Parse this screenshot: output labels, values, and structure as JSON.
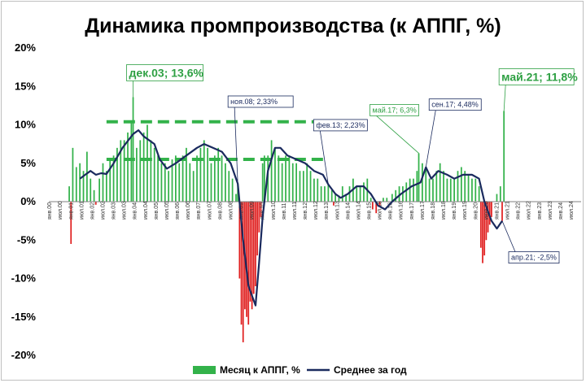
{
  "chart_data": {
    "type": "bar",
    "title": "Динамика промпроизводства (к АППГ, %)",
    "y_range": [
      -20,
      20
    ],
    "y_ticks": [
      "20%",
      "15%",
      "10%",
      "5%",
      "0%",
      "-5%",
      "-10%",
      "-15%",
      "-20%"
    ],
    "x_range": [
      "2000-01",
      "2024-12"
    ],
    "x_ticks": [
      "янв.00",
      "июл.00",
      "янв.01",
      "июл.01",
      "янв.02",
      "июл.02",
      "янв.03",
      "июл.03",
      "янв.04",
      "июл.04",
      "янв.05",
      "июл.05",
      "янв.06",
      "июл.06",
      "янв.07",
      "июл.07",
      "янв.08",
      "июл.08",
      "янв.09",
      "июл.09",
      "янв.10",
      "июл.10",
      "янв.11",
      "июл.11",
      "янв.12",
      "июл.12",
      "янв.13",
      "июл.13",
      "янв.14",
      "июл.14",
      "янв.15",
      "июл.15",
      "янв.16",
      "июл.16",
      "янв.17",
      "июл.17",
      "янв.18",
      "июл.18",
      "янв.19",
      "июл.19",
      "янв.20",
      "июл.20",
      "янв.21",
      "июл.21",
      "янв.22",
      "июл.22",
      "янв.23",
      "июл.23",
      "янв.24",
      "июл.24"
    ],
    "series": [
      {
        "name": "Месяц к АППГ, %",
        "type": "bar",
        "positive_color": "#33b24a",
        "negative_color": "#e02020",
        "points": [
          [
            "2000-12",
            2
          ],
          [
            "2001-01",
            -5.5
          ],
          [
            "2001-02",
            7
          ],
          [
            "2001-04",
            4.5
          ],
          [
            "2001-06",
            5
          ],
          [
            "2001-08",
            4
          ],
          [
            "2001-10",
            6.5
          ],
          [
            "2001-12",
            3
          ],
          [
            "2002-02",
            1.5
          ],
          [
            "2002-03",
            -0.4
          ],
          [
            "2002-05",
            3
          ],
          [
            "2002-07",
            5
          ],
          [
            "2002-09",
            4
          ],
          [
            "2002-11",
            5.5
          ],
          [
            "2003-01",
            6
          ],
          [
            "2003-03",
            7
          ],
          [
            "2003-05",
            8
          ],
          [
            "2003-07",
            8
          ],
          [
            "2003-09",
            9
          ],
          [
            "2003-11",
            10.5
          ],
          [
            "2003-12",
            13.6
          ],
          [
            "2004-02",
            7
          ],
          [
            "2004-04",
            8
          ],
          [
            "2004-06",
            9
          ],
          [
            "2004-08",
            10
          ],
          [
            "2004-10",
            8
          ],
          [
            "2004-12",
            7
          ],
          [
            "2005-02",
            6
          ],
          [
            "2005-04",
            5
          ],
          [
            "2005-06",
            5
          ],
          [
            "2005-08",
            4
          ],
          [
            "2005-10",
            5.5
          ],
          [
            "2005-12",
            6
          ],
          [
            "2006-02",
            5
          ],
          [
            "2006-04",
            6
          ],
          [
            "2006-06",
            7
          ],
          [
            "2006-08",
            5
          ],
          [
            "2006-10",
            4
          ],
          [
            "2006-12",
            6
          ],
          [
            "2007-02",
            7
          ],
          [
            "2007-04",
            8
          ],
          [
            "2007-06",
            7
          ],
          [
            "2007-08",
            5
          ],
          [
            "2007-10",
            6
          ],
          [
            "2007-12",
            7
          ],
          [
            "2008-02",
            6
          ],
          [
            "2008-04",
            5
          ],
          [
            "2008-06",
            4
          ],
          [
            "2008-08",
            3
          ],
          [
            "2008-10",
            1
          ],
          [
            "2008-11",
            2.33
          ],
          [
            "2008-12",
            -10
          ],
          [
            "2009-01",
            -16
          ],
          [
            "2009-02",
            -18.3
          ],
          [
            "2009-03",
            -14
          ],
          [
            "2009-04",
            -15
          ],
          [
            "2009-05",
            -16
          ],
          [
            "2009-06",
            -13
          ],
          [
            "2009-07",
            -14
          ],
          [
            "2009-08",
            -12
          ],
          [
            "2009-09",
            -11
          ],
          [
            "2009-10",
            -7
          ],
          [
            "2009-11",
            -4
          ],
          [
            "2009-12",
            -2
          ],
          [
            "2010-01",
            5
          ],
          [
            "2010-02",
            6
          ],
          [
            "2010-04",
            6
          ],
          [
            "2010-06",
            8
          ],
          [
            "2010-08",
            7
          ],
          [
            "2010-10",
            6
          ],
          [
            "2010-12",
            5
          ],
          [
            "2011-02",
            6
          ],
          [
            "2011-04",
            6
          ],
          [
            "2011-06",
            5
          ],
          [
            "2011-08",
            5
          ],
          [
            "2011-10",
            4
          ],
          [
            "2011-12",
            4
          ],
          [
            "2012-02",
            5
          ],
          [
            "2012-04",
            4
          ],
          [
            "2012-06",
            3
          ],
          [
            "2012-08",
            3
          ],
          [
            "2012-10",
            2
          ],
          [
            "2012-12",
            2
          ],
          [
            "2013-02",
            2.23
          ],
          [
            "2013-04",
            1.5
          ],
          [
            "2013-05",
            -0.5
          ],
          [
            "2013-06",
            1
          ],
          [
            "2013-08",
            0.8
          ],
          [
            "2013-10",
            2
          ],
          [
            "2013-12",
            1
          ],
          [
            "2014-02",
            2
          ],
          [
            "2014-04",
            3
          ],
          [
            "2014-06",
            2
          ],
          [
            "2014-08",
            2
          ],
          [
            "2014-10",
            2.5
          ],
          [
            "2014-12",
            3
          ],
          [
            "2015-02",
            0.5
          ],
          [
            "2015-03",
            -1
          ],
          [
            "2015-05",
            -1.5
          ],
          [
            "2015-07",
            -0.5
          ],
          [
            "2015-09",
            0.5
          ],
          [
            "2015-11",
            0.5
          ],
          [
            "2016-02",
            1
          ],
          [
            "2016-04",
            1.5
          ],
          [
            "2016-06",
            2
          ],
          [
            "2016-08",
            2
          ],
          [
            "2016-10",
            2.5
          ],
          [
            "2016-12",
            3
          ],
          [
            "2017-02",
            3
          ],
          [
            "2017-04",
            4
          ],
          [
            "2017-05",
            6.3
          ],
          [
            "2017-07",
            5
          ],
          [
            "2017-09",
            4.48
          ],
          [
            "2017-11",
            3
          ],
          [
            "2018-01",
            3
          ],
          [
            "2018-03",
            4
          ],
          [
            "2018-05",
            5
          ],
          [
            "2018-07",
            4
          ],
          [
            "2018-09",
            3
          ],
          [
            "2018-11",
            3
          ],
          [
            "2019-01",
            3
          ],
          [
            "2019-03",
            4
          ],
          [
            "2019-05",
            4.5
          ],
          [
            "2019-07",
            4
          ],
          [
            "2019-09",
            3.5
          ],
          [
            "2019-11",
            3
          ],
          [
            "2020-01",
            3
          ],
          [
            "2020-03",
            2
          ],
          [
            "2020-04",
            -6
          ],
          [
            "2020-05",
            -8
          ],
          [
            "2020-06",
            -7
          ],
          [
            "2020-07",
            -5
          ],
          [
            "2020-08",
            -4
          ],
          [
            "2020-09",
            -3
          ],
          [
            "2020-10",
            -2
          ],
          [
            "2021-01",
            1
          ],
          [
            "2021-03",
            2
          ],
          [
            "2021-04",
            -2.5
          ],
          [
            "2021-05",
            11.8
          ]
        ]
      },
      {
        "name": "Среднее за год",
        "type": "line",
        "color": "#1a2a5e",
        "points": [
          [
            "2001-06",
            3
          ],
          [
            "2001-09",
            3.5
          ],
          [
            "2001-12",
            4
          ],
          [
            "2002-03",
            3.5
          ],
          [
            "2002-06",
            3.7
          ],
          [
            "2002-09",
            3.6
          ],
          [
            "2003-01",
            5
          ],
          [
            "2003-06",
            7
          ],
          [
            "2003-12",
            8.8
          ],
          [
            "2004-03",
            9.3
          ],
          [
            "2004-06",
            8.5
          ],
          [
            "2004-12",
            7.5
          ],
          [
            "2005-03",
            5.5
          ],
          [
            "2005-07",
            4.3
          ],
          [
            "2005-12",
            5
          ],
          [
            "2006-06",
            6
          ],
          [
            "2006-12",
            7
          ],
          [
            "2007-04",
            7.5
          ],
          [
            "2007-09",
            7
          ],
          [
            "2008-02",
            6.5
          ],
          [
            "2008-07",
            5
          ],
          [
            "2008-11",
            2.33
          ],
          [
            "2009-02",
            -5
          ],
          [
            "2009-05",
            -11
          ],
          [
            "2009-09",
            -13.5
          ],
          [
            "2009-11",
            -8
          ],
          [
            "2010-01",
            -2
          ],
          [
            "2010-04",
            4
          ],
          [
            "2010-08",
            7
          ],
          [
            "2010-11",
            7
          ],
          [
            "2011-03",
            6
          ],
          [
            "2011-08",
            5.5
          ],
          [
            "2012-01",
            5
          ],
          [
            "2012-06",
            4
          ],
          [
            "2012-11",
            3.5
          ],
          [
            "2013-02",
            2.23
          ],
          [
            "2013-06",
            1
          ],
          [
            "2013-09",
            0.5
          ],
          [
            "2014-01",
            1
          ],
          [
            "2014-06",
            2
          ],
          [
            "2014-10",
            2
          ],
          [
            "2015-02",
            1
          ],
          [
            "2015-06",
            -0.5
          ],
          [
            "2015-10",
            -1
          ],
          [
            "2016-02",
            0
          ],
          [
            "2016-07",
            1
          ],
          [
            "2017-01",
            2
          ],
          [
            "2017-06",
            2.5
          ],
          [
            "2017-09",
            4.48
          ],
          [
            "2017-12",
            3
          ],
          [
            "2018-04",
            4
          ],
          [
            "2018-09",
            3.5
          ],
          [
            "2019-01",
            3
          ],
          [
            "2019-06",
            3.5
          ],
          [
            "2019-11",
            3.5
          ],
          [
            "2020-03",
            3
          ],
          [
            "2020-06",
            0
          ],
          [
            "2020-10",
            -2.5
          ],
          [
            "2021-01",
            -3.5
          ],
          [
            "2021-04",
            -2.5
          ]
        ]
      }
    ],
    "reference_lines": [
      {
        "y": 10.4,
        "from": "2002-09",
        "to": "2012-12",
        "style": "dashed",
        "color": "#33b24a"
      },
      {
        "y": 5.5,
        "from": "2002-09",
        "to": "2012-12",
        "style": "dashed",
        "color": "#33b24a"
      }
    ],
    "annotations": [
      {
        "text": "дек.03; 13,6%",
        "x": "2003-12",
        "y": 13.6,
        "style": "big-green"
      },
      {
        "text": "ноя.08; 2,33%",
        "x": "2008-11",
        "y": 2.33,
        "style": "navy"
      },
      {
        "text": "фев.13; 2,23%",
        "x": "2013-02",
        "y": 2.23,
        "style": "navy"
      },
      {
        "text": "май.17; 6,3%",
        "x": "2017-05",
        "y": 6.3,
        "style": "green"
      },
      {
        "text": "сен.17; 4,48%",
        "x": "2017-09",
        "y": 4.48,
        "style": "navy"
      },
      {
        "text": "май.21; 11,8%",
        "x": "2021-05",
        "y": 11.8,
        "style": "big-green"
      },
      {
        "text": "апр.21; -2,5%",
        "x": "2021-04",
        "y": -2.5,
        "style": "navy"
      }
    ],
    "legend": {
      "placement": "bottom-center",
      "entries": [
        "Месяц к АППГ, %",
        "Среднее за год"
      ]
    },
    "grid": false
  }
}
